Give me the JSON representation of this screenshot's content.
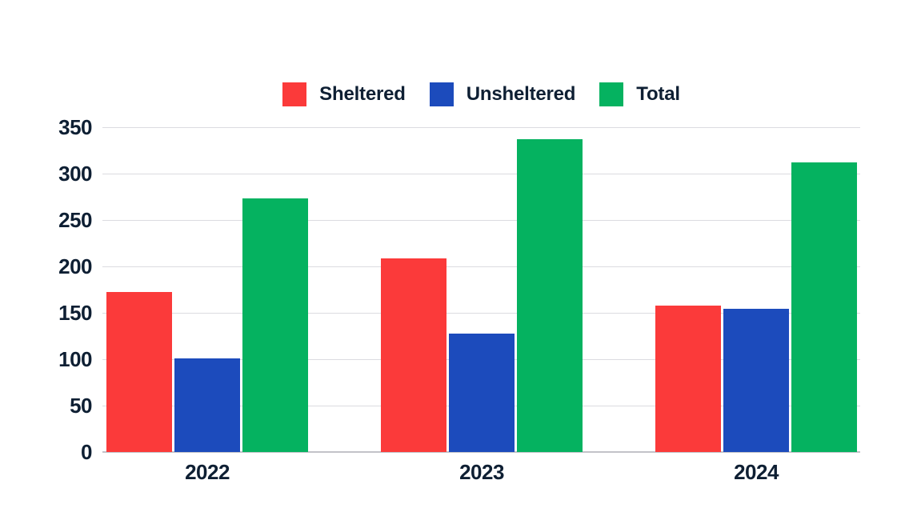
{
  "chart_data": {
    "type": "bar",
    "title": "",
    "xlabel": "",
    "ylabel": "",
    "categories": [
      "2022",
      "2023",
      "2024"
    ],
    "series": [
      {
        "name": "Sheltered",
        "color": "#fb3a3a",
        "values": [
          172,
          209,
          158
        ]
      },
      {
        "name": "Unsheltered",
        "color": "#1c4bbc",
        "values": [
          101,
          128,
          154
        ]
      },
      {
        "name": "Total",
        "color": "#05b260",
        "values": [
          273,
          337,
          312
        ]
      }
    ],
    "ylim": [
      0,
      350
    ],
    "yticks": [
      0,
      50,
      100,
      150,
      200,
      250,
      300,
      350
    ],
    "grid": true,
    "legend_position": "top"
  },
  "colors": {
    "background": "#ffffff",
    "text": "#0e1f33",
    "gridline": "#dcdce0",
    "axis_line": "#c2c2c8"
  }
}
